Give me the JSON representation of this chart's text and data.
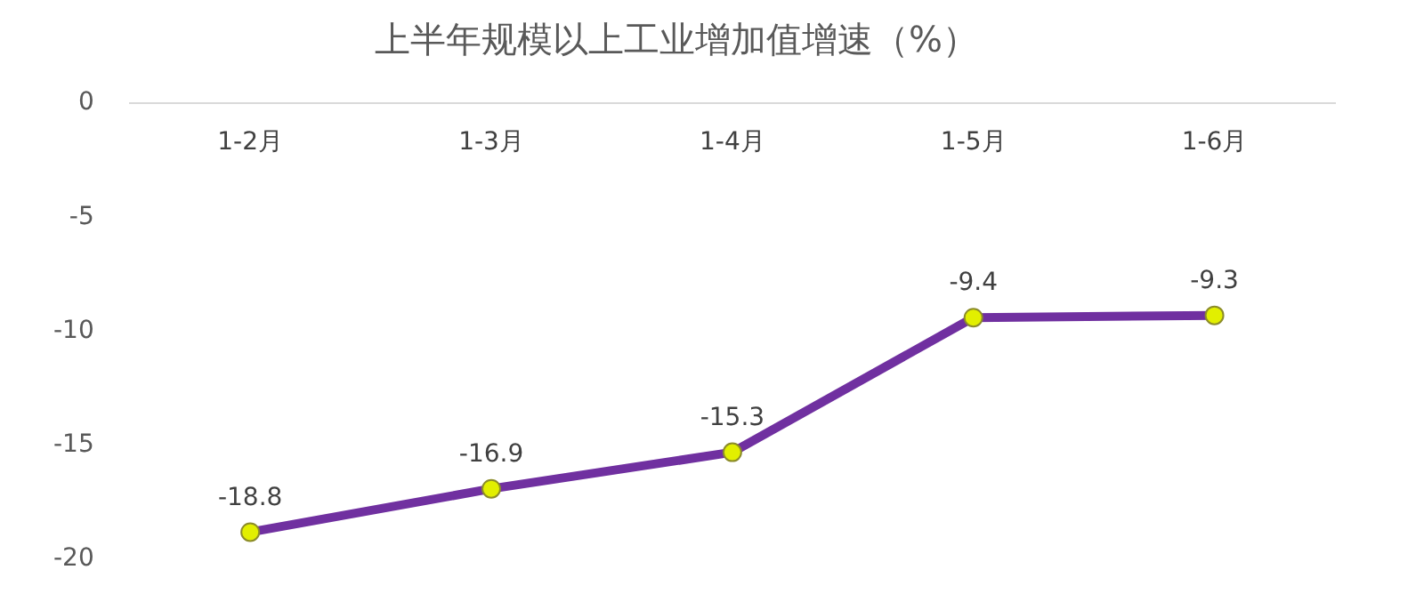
{
  "chart_data": {
    "type": "line",
    "title": "上半年规模以上工业增加值增速（%）",
    "categories": [
      "1-2月",
      "1-3月",
      "1-4月",
      "1-5月",
      "1-6月"
    ],
    "series": [
      {
        "color": "#7030a0",
        "values": [
          -18.8,
          -16.9,
          -15.3,
          -9.4,
          -9.3
        ]
      }
    ],
    "ylim": [
      -20,
      0
    ],
    "yticks": [
      0,
      -5,
      -10,
      -15,
      -20
    ],
    "grid": false,
    "legend": false,
    "marker": "circle",
    "line_style": "solid",
    "data_labels": true
  }
}
